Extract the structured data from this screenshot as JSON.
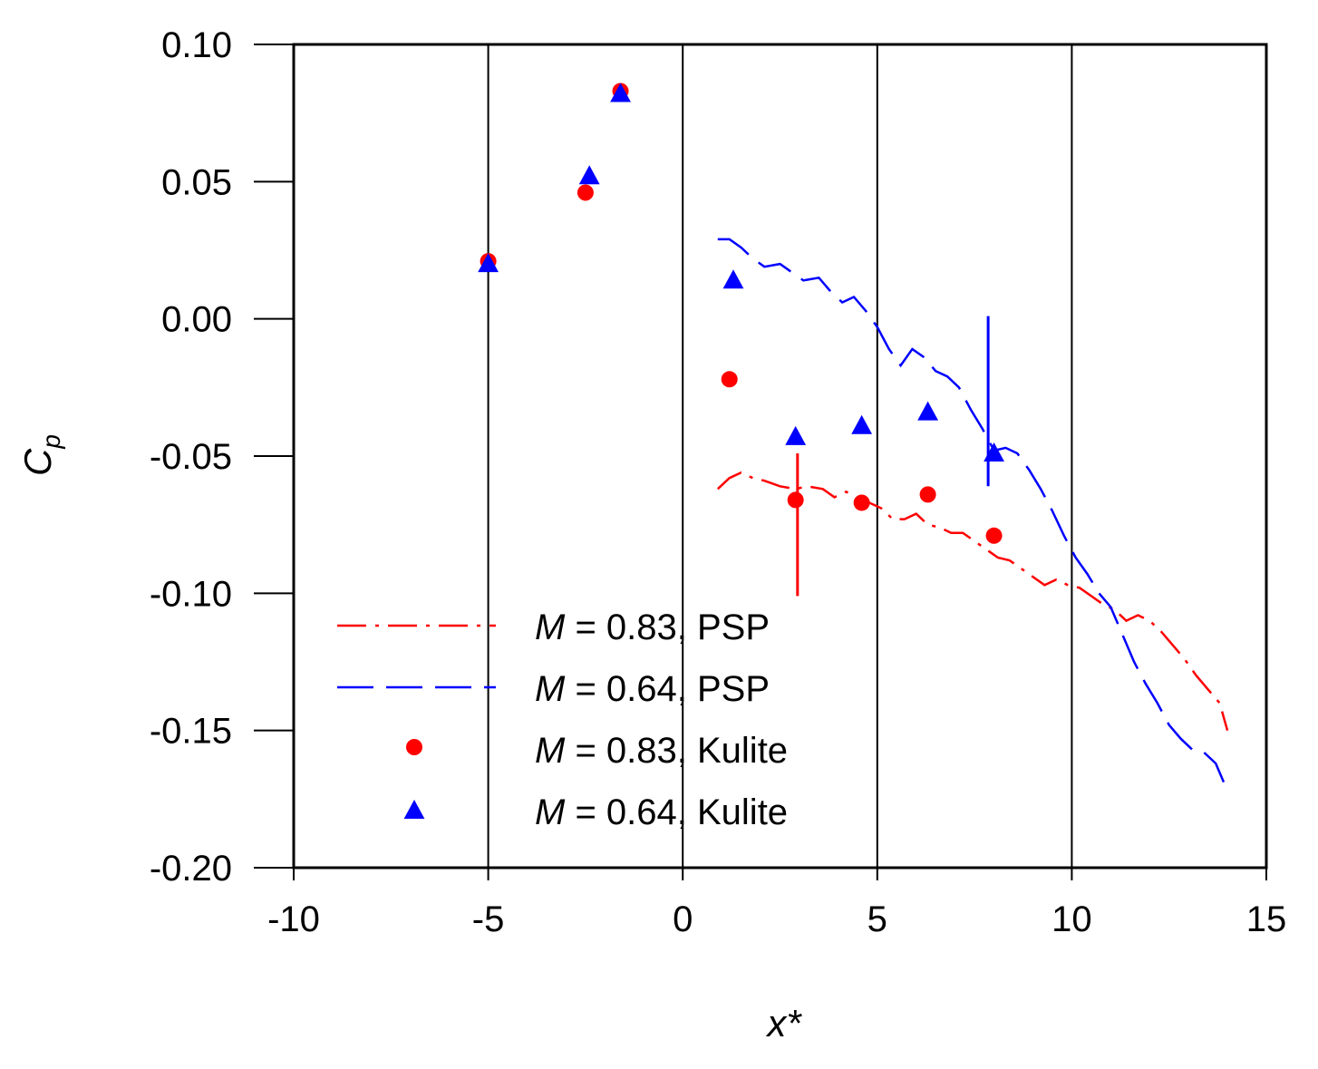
{
  "chart_data": {
    "type": "scatter",
    "title": "",
    "xlabel": "x*",
    "ylabel_main": "C",
    "ylabel_sub": "p",
    "xlim": [
      -10,
      15
    ],
    "ylim": [
      -0.2,
      0.1
    ],
    "grid": "vertical",
    "x_ticks": [
      -10,
      -5,
      0,
      5,
      10,
      15
    ],
    "x_tick_labels": [
      "-10",
      "-5",
      "0",
      "5",
      "10",
      "15"
    ],
    "y_ticks": [
      0.1,
      0.05,
      0.0,
      -0.05,
      -0.1,
      -0.15,
      -0.2
    ],
    "y_tick_labels": [
      "0.10",
      "0.05",
      "0.00",
      "-0.05",
      "-0.10",
      "-0.15",
      "-0.20"
    ],
    "legend_position": "lower-left",
    "series": [
      {
        "name": "M = 0.83, PSP",
        "legend_italic": "M",
        "legend_rest": " = 0.83, PSP",
        "kind": "line",
        "dash": "dashdot",
        "color": "#ff0000",
        "x": [
          0.9,
          1.2,
          1.5,
          1.8,
          2.1,
          2.5,
          2.9,
          3.2,
          3.6,
          3.9,
          4.2,
          4.5,
          4.8,
          5.1,
          5.4,
          5.7,
          6.0,
          6.3,
          6.6,
          6.9,
          7.2,
          7.5,
          7.8,
          8.1,
          8.4,
          8.7,
          9.0,
          9.3,
          9.6,
          9.9,
          10.2,
          10.5,
          10.8,
          11.1,
          11.4,
          11.7,
          12.0,
          12.3,
          12.6,
          12.9,
          13.2,
          13.5,
          13.8,
          14.0
        ],
        "y": [
          -0.062,
          -0.058,
          -0.056,
          -0.058,
          -0.059,
          -0.061,
          -0.062,
          -0.061,
          -0.062,
          -0.065,
          -0.063,
          -0.066,
          -0.067,
          -0.069,
          -0.073,
          -0.073,
          -0.071,
          -0.075,
          -0.076,
          -0.078,
          -0.078,
          -0.081,
          -0.084,
          -0.087,
          -0.088,
          -0.091,
          -0.094,
          -0.097,
          -0.095,
          -0.097,
          -0.098,
          -0.101,
          -0.104,
          -0.106,
          -0.11,
          -0.108,
          -0.11,
          -0.114,
          -0.119,
          -0.124,
          -0.13,
          -0.135,
          -0.14,
          -0.15
        ]
      },
      {
        "name": "M = 0.64, PSP",
        "legend_italic": "M",
        "legend_rest": " = 0.64, PSP",
        "kind": "line",
        "dash": "longdash",
        "color": "#0000ff",
        "x": [
          0.9,
          1.2,
          1.5,
          1.8,
          2.1,
          2.5,
          2.8,
          3.1,
          3.5,
          3.8,
          4.1,
          4.4,
          4.7,
          5.0,
          5.3,
          5.6,
          5.9,
          6.2,
          6.5,
          6.8,
          7.1,
          7.4,
          7.7,
          8.0,
          8.3,
          8.6,
          8.9,
          9.2,
          9.5,
          9.8,
          10.1,
          10.4,
          10.7,
          11.0,
          11.3,
          11.6,
          11.9,
          12.2,
          12.5,
          12.8,
          13.1,
          13.4,
          13.7,
          14.0
        ],
        "y": [
          0.029,
          0.029,
          0.026,
          0.022,
          0.019,
          0.02,
          0.017,
          0.014,
          0.015,
          0.01,
          0.006,
          0.008,
          0.003,
          -0.003,
          -0.011,
          -0.017,
          -0.011,
          -0.014,
          -0.019,
          -0.021,
          -0.025,
          -0.033,
          -0.04,
          -0.048,
          -0.047,
          -0.049,
          -0.055,
          -0.062,
          -0.07,
          -0.079,
          -0.087,
          -0.093,
          -0.1,
          -0.105,
          -0.115,
          -0.125,
          -0.133,
          -0.14,
          -0.148,
          -0.153,
          -0.157,
          -0.158,
          -0.162,
          -0.172
        ]
      },
      {
        "name": "M = 0.83, Kulite",
        "legend_italic": "M",
        "legend_rest": " = 0.83, Kulite",
        "kind": "marker",
        "marker": "circle",
        "color": "#ff0000",
        "x": [
          -5.0,
          -2.5,
          -1.6,
          1.2,
          2.9,
          4.6,
          6.3,
          8.0
        ],
        "y": [
          0.021,
          0.046,
          0.083,
          -0.022,
          -0.066,
          -0.067,
          -0.064,
          -0.079
        ]
      },
      {
        "name": "M = 0.64, Kulite",
        "legend_italic": "M",
        "legend_rest": " = 0.64, Kulite",
        "kind": "marker",
        "marker": "triangle",
        "color": "#0000ff",
        "x": [
          -5.0,
          -2.4,
          -1.6,
          1.3,
          2.9,
          4.6,
          6.3,
          8.0
        ],
        "y": [
          0.02,
          0.052,
          0.082,
          0.014,
          -0.043,
          -0.039,
          -0.034,
          -0.049
        ]
      }
    ],
    "error_bars": [
      {
        "color": "#ff0000",
        "x": 2.95,
        "y_low": -0.101,
        "y_high": -0.049
      },
      {
        "color": "#0000ff",
        "x": 7.85,
        "y_low": -0.061,
        "y_high": 0.001
      }
    ]
  }
}
